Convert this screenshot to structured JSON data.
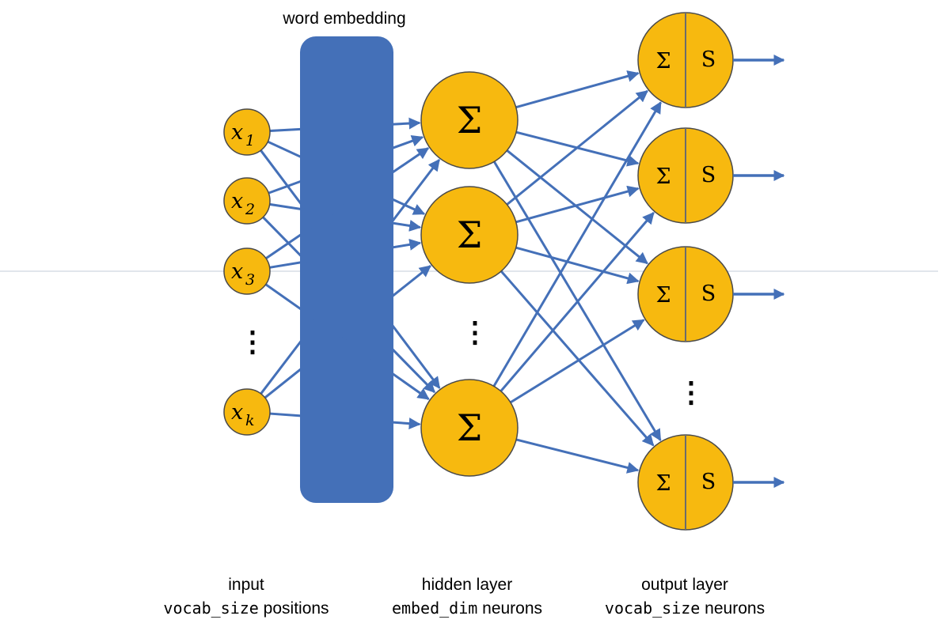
{
  "title": "word embedding",
  "embedding_bar_color": "#4470B8",
  "neuron_color": "#F7B90F",
  "edge_color": "#4470B8",
  "input_nodes": [
    {
      "var": "x",
      "sub": "1"
    },
    {
      "var": "x",
      "sub": "2"
    },
    {
      "var": "x",
      "sub": "3"
    },
    {
      "var": "x",
      "sub": "k"
    }
  ],
  "hidden_nodes": [
    {
      "symbol": "Σ"
    },
    {
      "symbol": "Σ"
    },
    {
      "symbol": "Σ"
    }
  ],
  "output_nodes": [
    {
      "left": "Σ",
      "right": "S"
    },
    {
      "left": "Σ",
      "right": "S"
    },
    {
      "left": "Σ",
      "right": "S"
    },
    {
      "left": "Σ",
      "right": "S"
    }
  ],
  "ellipsis": "⋮",
  "captions": {
    "input": {
      "line1": "input",
      "code": "vocab_size",
      "rest": " positions"
    },
    "hidden": {
      "line1": "hidden layer",
      "code": "embed_dim",
      "rest": " neurons"
    },
    "output": {
      "line1": "output layer",
      "code": "vocab_size",
      "rest": " neurons"
    }
  }
}
